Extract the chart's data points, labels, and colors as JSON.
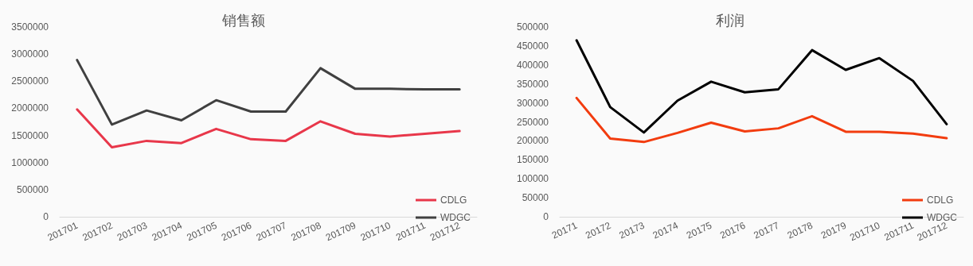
{
  "chart_data": [
    {
      "type": "line",
      "title": "销售额",
      "categories": [
        "201701",
        "201702",
        "201703",
        "201704",
        "201705",
        "201706",
        "201707",
        "201708",
        "201709",
        "201710",
        "201711",
        "201712"
      ],
      "series": [
        {
          "name": "CDLG",
          "color": "#e8374a",
          "values": [
            1980000,
            1280000,
            1400000,
            1360000,
            1620000,
            1430000,
            1400000,
            1760000,
            1530000,
            1480000,
            1530000,
            1580000
          ]
        },
        {
          "name": "WDGC",
          "color": "#404040",
          "values": [
            2890000,
            1700000,
            1960000,
            1780000,
            2150000,
            1940000,
            1940000,
            2740000,
            2360000,
            2360000,
            2350000,
            2350000
          ]
        }
      ],
      "ylim": [
        0,
        3500000
      ],
      "yticks": [
        0,
        500000,
        1000000,
        1500000,
        2000000,
        2500000,
        3000000,
        3500000
      ],
      "grid": false,
      "legend": "bottom right",
      "marker": "none",
      "line_style": "solid"
    },
    {
      "type": "line",
      "title": "利润",
      "categories": [
        "20171",
        "20172",
        "20173",
        "20174",
        "20175",
        "20176",
        "20177",
        "20178",
        "20179",
        "201710",
        "201711",
        "201712"
      ],
      "series": [
        {
          "name": "CDLG",
          "color": "#f23c0f",
          "values": [
            313000,
            206000,
            197000,
            221000,
            248000,
            225000,
            233000,
            265000,
            224000,
            224000,
            219000,
            207000
          ]
        },
        {
          "name": "WDGC",
          "color": "#000000",
          "values": [
            465000,
            289000,
            222000,
            306000,
            356000,
            328000,
            336000,
            439000,
            387000,
            418000,
            358000,
            244000
          ]
        }
      ],
      "ylim": [
        0,
        500000
      ],
      "yticks": [
        0,
        50000,
        100000,
        150000,
        200000,
        250000,
        300000,
        350000,
        400000,
        450000,
        500000
      ],
      "grid": false,
      "legend": "bottom right",
      "marker": "none",
      "line_style": "solid"
    }
  ]
}
